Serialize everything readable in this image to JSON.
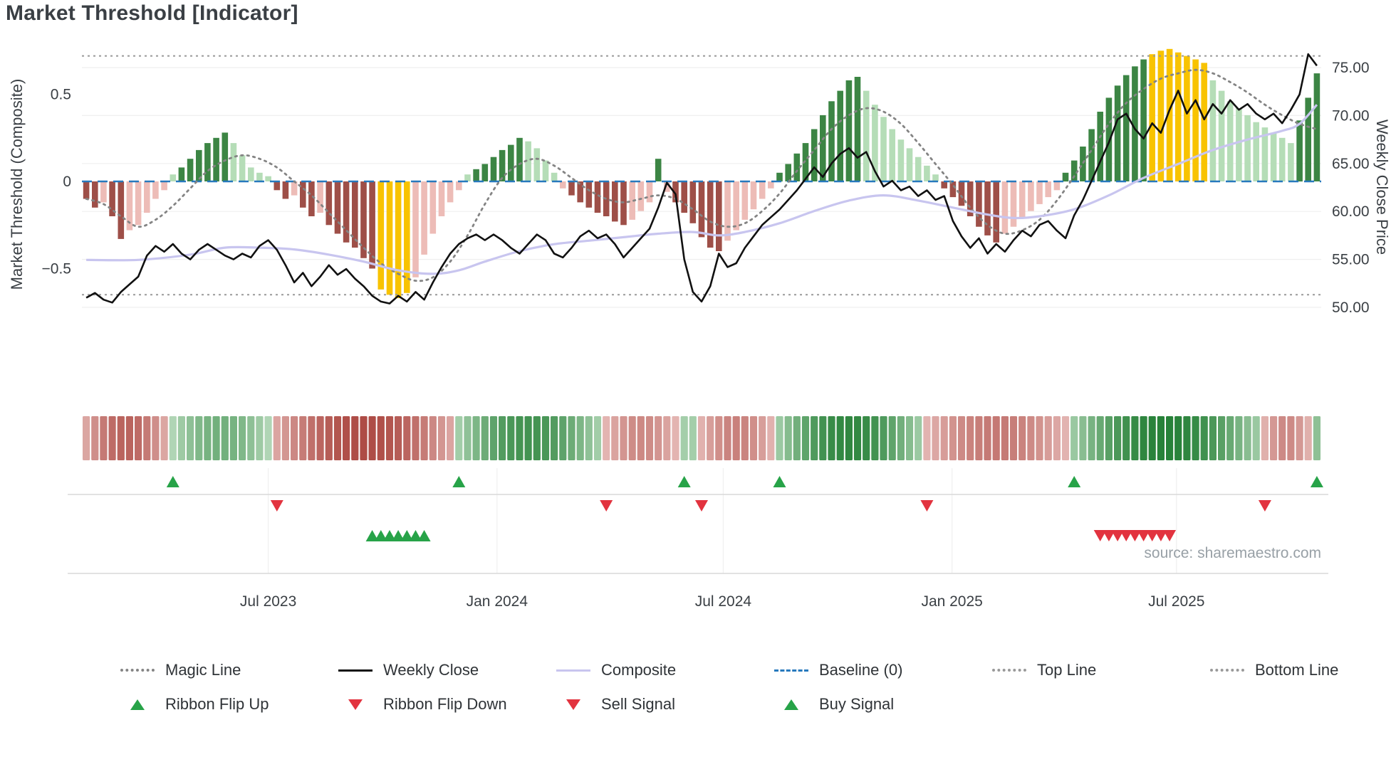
{
  "title": "Market Threshold [Indicator]",
  "source": "source: sharemaestro.com",
  "colors": {
    "bar_pos_dark": "#3c8544",
    "bar_pos_light": "#b5ddb7",
    "bar_neg_dark": "#9e4f48",
    "bar_neg_light": "#edbcb7",
    "bar_extreme": "#f8c300",
    "weekly_close": "#111111",
    "composite_line": "#c8c5ef",
    "magic_line": "#848484",
    "baseline": "#2779bd",
    "band_lines": "#999999",
    "signal_green": "#27a348",
    "signal_red": "#e2333f",
    "ribbon_red_dark": "#a63d36",
    "ribbon_red_light": "#f3d4d2",
    "ribbon_green_dark": "#1e7c30",
    "ribbon_green_light": "#d8eed9",
    "grid": "#efefef",
    "spine": "#d9d9d9",
    "text_dark": "#3a3f44",
    "text_muted": "#98a0a6"
  },
  "legend": {
    "row1": [
      {
        "label": "Magic Line",
        "swatch": "dotted-line",
        "color": "#848484"
      },
      {
        "label": "Weekly Close",
        "swatch": "solid-line",
        "color": "#111111"
      },
      {
        "label": "Composite",
        "swatch": "solid-line",
        "color": "#c8c5ef"
      },
      {
        "label": "Baseline (0)",
        "swatch": "dashed-line",
        "color": "#2779bd"
      },
      {
        "label": "Top Line",
        "swatch": "dotted-line",
        "color": "#999999"
      },
      {
        "label": "Bottom Line",
        "swatch": "dotted-line",
        "color": "#999999"
      }
    ],
    "row2": [
      {
        "label": "Ribbon Flip Up",
        "swatch": "triangle-up",
        "color": "#27a348"
      },
      {
        "label": "Ribbon Flip Down",
        "swatch": "triangle-down",
        "color": "#e2333f"
      },
      {
        "label": "Sell Signal",
        "swatch": "triangle-down",
        "color": "#e2333f"
      },
      {
        "label": "Buy Signal",
        "swatch": "triangle-up",
        "color": "#27a348"
      }
    ]
  },
  "chart_data": {
    "type": "bar+line indicator panel with ribbon heatmap and signal markers",
    "n_weeks": 143,
    "x_ticks": [
      {
        "week": 21,
        "label": "Jul 2023"
      },
      {
        "week": 47.4,
        "label": "Jan 2024"
      },
      {
        "week": 73.5,
        "label": "Jul 2024"
      },
      {
        "week": 99.9,
        "label": "Jan 2025"
      },
      {
        "week": 125.8,
        "label": "Jul 2025"
      }
    ],
    "left_axis": {
      "label": "Market Threshold (Composite)",
      "range": [
        -0.8,
        0.82
      ],
      "ticks": [
        {
          "v": 0.5,
          "label": "0.5"
        },
        {
          "v": 0,
          "label": "0"
        },
        {
          "v": -0.5,
          "label": "−0.5"
        }
      ]
    },
    "right_axis": {
      "label": "Weekly Close Price",
      "range": [
        48.5,
        77.5
      ],
      "ticks": [
        {
          "v": 75,
          "label": "75.00"
        },
        {
          "v": 70,
          "label": "70.00"
        },
        {
          "v": 65,
          "label": "65.00"
        },
        {
          "v": 60,
          "label": "60.00"
        },
        {
          "v": 55,
          "label": "55.00"
        },
        {
          "v": 50,
          "label": "50.00"
        }
      ]
    },
    "baseline": 0,
    "top_line": 0.72,
    "bottom_line": -0.65,
    "composite_bars": [
      -0.1,
      -0.15,
      -0.12,
      -0.2,
      -0.33,
      -0.28,
      -0.25,
      -0.18,
      -0.1,
      -0.05,
      0.04,
      0.08,
      0.13,
      0.18,
      0.22,
      0.25,
      0.28,
      0.22,
      0.15,
      0.08,
      0.05,
      0.03,
      -0.05,
      -0.1,
      -0.08,
      -0.15,
      -0.2,
      -0.18,
      -0.25,
      -0.3,
      -0.35,
      -0.38,
      -0.44,
      -0.5,
      -0.62,
      -0.65,
      -0.67,
      -0.64,
      -0.55,
      -0.42,
      -0.3,
      -0.2,
      -0.12,
      -0.05,
      0.04,
      0.07,
      0.1,
      0.14,
      0.18,
      0.21,
      0.25,
      0.23,
      0.19,
      0.12,
      0.05,
      -0.04,
      -0.08,
      -0.12,
      -0.15,
      -0.18,
      -0.2,
      -0.23,
      -0.25,
      -0.22,
      -0.17,
      -0.12,
      0.13,
      -0.06,
      -0.12,
      -0.18,
      -0.24,
      -0.32,
      -0.38,
      -0.4,
      -0.34,
      -0.28,
      -0.22,
      -0.16,
      -0.1,
      -0.04,
      0.05,
      0.1,
      0.16,
      0.22,
      0.3,
      0.38,
      0.46,
      0.52,
      0.58,
      0.6,
      0.52,
      0.44,
      0.37,
      0.3,
      0.24,
      0.19,
      0.14,
      0.09,
      0.04,
      -0.04,
      -0.09,
      -0.14,
      -0.2,
      -0.26,
      -0.31,
      -0.35,
      -0.3,
      -0.26,
      -0.21,
      -0.17,
      -0.13,
      -0.09,
      -0.05,
      0.05,
      0.12,
      0.2,
      0.3,
      0.4,
      0.48,
      0.55,
      0.61,
      0.66,
      0.7,
      0.73,
      0.75,
      0.76,
      0.74,
      0.72,
      0.7,
      0.68,
      0.58,
      0.52,
      0.46,
      0.42,
      0.38,
      0.34,
      0.31,
      0.28,
      0.25,
      0.22,
      0.35,
      0.48,
      0.62
    ],
    "extreme_bar_weeks": [
      34,
      35,
      36,
      37,
      123,
      124,
      125,
      126,
      127,
      128,
      129
    ],
    "weekly_close": [
      51.0,
      51.5,
      50.8,
      50.5,
      51.6,
      52.4,
      53.2,
      55.4,
      56.4,
      55.8,
      56.6,
      55.6,
      55.0,
      56.0,
      56.6,
      56.0,
      55.4,
      55.0,
      55.6,
      55.2,
      56.4,
      57.0,
      56.0,
      54.4,
      52.6,
      53.6,
      52.2,
      53.2,
      54.4,
      53.4,
      54.0,
      53.0,
      52.2,
      51.2,
      50.6,
      50.4,
      51.2,
      50.6,
      51.6,
      50.8,
      52.6,
      54.2,
      55.6,
      56.6,
      57.2,
      57.6,
      57.0,
      57.6,
      57.0,
      56.2,
      55.6,
      56.6,
      57.6,
      57.0,
      55.6,
      55.2,
      56.2,
      57.4,
      58.0,
      57.2,
      57.6,
      56.6,
      55.2,
      56.2,
      57.2,
      58.2,
      60.4,
      63.0,
      61.8,
      55.0,
      51.6,
      50.6,
      52.2,
      55.6,
      54.2,
      54.6,
      56.2,
      57.4,
      58.6,
      59.4,
      60.2,
      61.2,
      62.2,
      63.4,
      64.6,
      63.6,
      65.0,
      66.0,
      66.6,
      65.6,
      66.2,
      64.2,
      62.6,
      63.2,
      62.2,
      62.6,
      61.6,
      62.2,
      61.2,
      61.6,
      59.0,
      57.4,
      56.2,
      57.2,
      55.6,
      56.6,
      55.8,
      57.0,
      58.0,
      57.4,
      58.6,
      59.0,
      58.0,
      57.2,
      59.6,
      61.2,
      63.2,
      65.2,
      67.2,
      69.6,
      70.2,
      68.6,
      67.6,
      69.2,
      68.2,
      70.6,
      72.6,
      70.2,
      71.6,
      69.6,
      71.2,
      70.2,
      71.6,
      70.6,
      71.2,
      70.2,
      69.6,
      70.2,
      69.2,
      70.6,
      72.2,
      76.4,
      75.2
    ],
    "composite_line_keypoints": [
      [
        0,
        -0.45
      ],
      [
        6,
        -0.45
      ],
      [
        12,
        -0.42
      ],
      [
        16,
        -0.38
      ],
      [
        20,
        -0.38
      ],
      [
        24,
        -0.39
      ],
      [
        28,
        -0.42
      ],
      [
        32,
        -0.46
      ],
      [
        36,
        -0.51
      ],
      [
        40,
        -0.53
      ],
      [
        43,
        -0.51
      ],
      [
        46,
        -0.46
      ],
      [
        50,
        -0.4
      ],
      [
        54,
        -0.36
      ],
      [
        58,
        -0.34
      ],
      [
        62,
        -0.32
      ],
      [
        66,
        -0.3
      ],
      [
        70,
        -0.29
      ],
      [
        73,
        -0.31
      ],
      [
        76,
        -0.29
      ],
      [
        80,
        -0.24
      ],
      [
        84,
        -0.17
      ],
      [
        88,
        -0.11
      ],
      [
        92,
        -0.08
      ],
      [
        96,
        -0.11
      ],
      [
        100,
        -0.15
      ],
      [
        104,
        -0.19
      ],
      [
        107,
        -0.21
      ],
      [
        110,
        -0.2
      ],
      [
        114,
        -0.16
      ],
      [
        118,
        -0.08
      ],
      [
        122,
        0.02
      ],
      [
        126,
        0.1
      ],
      [
        130,
        0.18
      ],
      [
        134,
        0.24
      ],
      [
        138,
        0.29
      ],
      [
        140,
        0.33
      ],
      [
        142,
        0.44
      ]
    ],
    "magic_line_keypoints": [
      [
        0,
        -0.1
      ],
      [
        2,
        -0.13
      ],
      [
        4,
        -0.2
      ],
      [
        6,
        -0.26
      ],
      [
        8,
        -0.22
      ],
      [
        10,
        -0.14
      ],
      [
        12,
        -0.04
      ],
      [
        14,
        0.06
      ],
      [
        16,
        0.12
      ],
      [
        18,
        0.15
      ],
      [
        20,
        0.13
      ],
      [
        22,
        0.08
      ],
      [
        24,
        0.0
      ],
      [
        26,
        -0.08
      ],
      [
        28,
        -0.18
      ],
      [
        30,
        -0.28
      ],
      [
        32,
        -0.38
      ],
      [
        34,
        -0.47
      ],
      [
        36,
        -0.53
      ],
      [
        38,
        -0.57
      ],
      [
        40,
        -0.55
      ],
      [
        42,
        -0.46
      ],
      [
        44,
        -0.31
      ],
      [
        46,
        -0.13
      ],
      [
        48,
        0.02
      ],
      [
        50,
        0.1
      ],
      [
        52,
        0.13
      ],
      [
        54,
        0.09
      ],
      [
        56,
        0.02
      ],
      [
        58,
        -0.05
      ],
      [
        60,
        -0.1
      ],
      [
        62,
        -0.12
      ],
      [
        64,
        -0.1
      ],
      [
        66,
        -0.08
      ],
      [
        68,
        -0.1
      ],
      [
        70,
        -0.16
      ],
      [
        72,
        -0.23
      ],
      [
        74,
        -0.26
      ],
      [
        76,
        -0.24
      ],
      [
        78,
        -0.17
      ],
      [
        80,
        -0.07
      ],
      [
        82,
        0.06
      ],
      [
        84,
        0.18
      ],
      [
        86,
        0.3
      ],
      [
        88,
        0.38
      ],
      [
        90,
        0.42
      ],
      [
        92,
        0.4
      ],
      [
        94,
        0.33
      ],
      [
        96,
        0.22
      ],
      [
        98,
        0.1
      ],
      [
        100,
        -0.02
      ],
      [
        102,
        -0.15
      ],
      [
        104,
        -0.25
      ],
      [
        106,
        -0.3
      ],
      [
        108,
        -0.28
      ],
      [
        110,
        -0.22
      ],
      [
        112,
        -0.11
      ],
      [
        114,
        0.03
      ],
      [
        116,
        0.18
      ],
      [
        118,
        0.33
      ],
      [
        120,
        0.45
      ],
      [
        122,
        0.53
      ],
      [
        124,
        0.59
      ],
      [
        126,
        0.62
      ],
      [
        128,
        0.64
      ],
      [
        130,
        0.62
      ],
      [
        132,
        0.57
      ],
      [
        134,
        0.51
      ],
      [
        136,
        0.44
      ],
      [
        138,
        0.38
      ],
      [
        140,
        0.33
      ],
      [
        142,
        0.3
      ]
    ],
    "ribbon_segments": [
      {
        "from": 0,
        "to": 9,
        "dir": "red",
        "peak": 0.75
      },
      {
        "from": 10,
        "to": 21,
        "dir": "green",
        "peak": 0.55
      },
      {
        "from": 22,
        "to": 42,
        "dir": "red",
        "peak": 0.9
      },
      {
        "from": 43,
        "to": 59,
        "dir": "green",
        "peak": 0.8
      },
      {
        "from": 60,
        "to": 68,
        "dir": "red",
        "peak": 0.5
      },
      {
        "from": 69,
        "to": 70,
        "dir": "green",
        "peak": 0.35
      },
      {
        "from": 71,
        "to": 79,
        "dir": "red",
        "peak": 0.55
      },
      {
        "from": 80,
        "to": 96,
        "dir": "green",
        "peak": 0.9
      },
      {
        "from": 97,
        "to": 113,
        "dir": "red",
        "peak": 0.6
      },
      {
        "from": 114,
        "to": 135,
        "dir": "green",
        "peak": 0.95
      },
      {
        "from": 136,
        "to": 141,
        "dir": "red",
        "peak": 0.5
      },
      {
        "from": 142,
        "to": 142,
        "dir": "green",
        "peak": 0.4
      }
    ],
    "signals": {
      "ribbon_flip_up_weeks": [
        10,
        43,
        69,
        80,
        114,
        142
      ],
      "ribbon_flip_down_weeks": [
        22,
        60,
        71,
        97,
        136
      ],
      "buy_signal_weeks": [
        33,
        34,
        35,
        36,
        37,
        38,
        39
      ],
      "sell_signal_weeks": [
        117,
        118,
        119,
        120,
        121,
        122,
        123,
        124,
        125
      ]
    }
  }
}
